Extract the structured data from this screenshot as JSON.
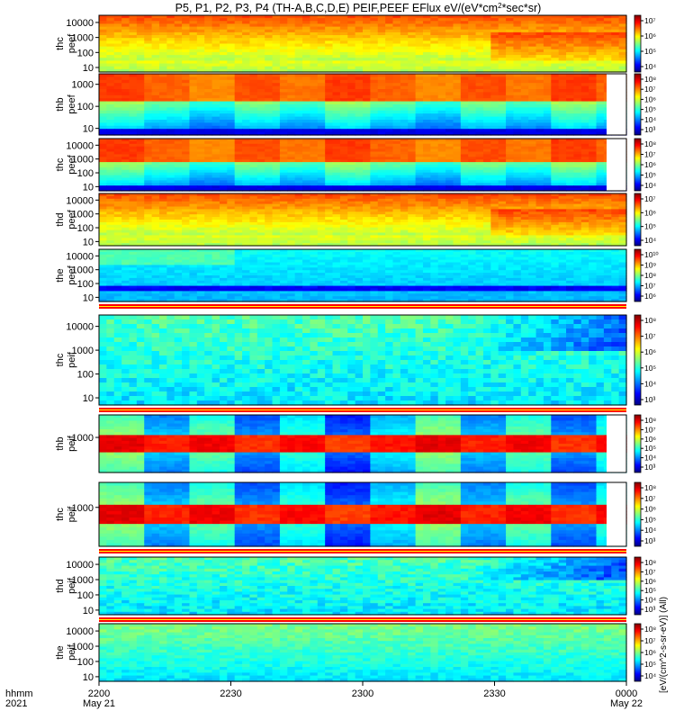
{
  "chart_data": {
    "type": "heatmap",
    "title": "P5, P1, P2, P3, P4 (TH-A,B,C,D,E) PEIF,PEEF EFlux eV/(eV*cm^2*sec*sr)",
    "title_parts": {
      "prefix": "P5, P1, P2, P3, P4 (TH-A,B,C,D,E) PEIF,PEEF EFlux eV/(eV*cm",
      "sq": "2",
      "suffix": "*sec*sr)"
    },
    "xlabel_row1": "hhmm",
    "xlabel_row2": "2021",
    "xticks": [
      {
        "label": "2200",
        "sub": "May 21",
        "t": 0
      },
      {
        "label": "2230",
        "sub": "",
        "t": 30
      },
      {
        "label": "2300",
        "sub": "",
        "t": 60
      },
      {
        "label": "2330",
        "sub": "",
        "t": 90
      },
      {
        "label": "0000",
        "sub": "May 22",
        "t": 120
      }
    ],
    "x_range_minutes": [
      0,
      120
    ],
    "colorbar_unit": "[eV/(cm^2-s-sr-eV)] (All)",
    "colormap": [
      "#000080",
      "#0000ff",
      "#0080ff",
      "#00ffff",
      "#80ff80",
      "#ffff00",
      "#ff8000",
      "#ff0000",
      "#800000"
    ],
    "panels": [
      {
        "probe": "thc",
        "product": "peef",
        "yticks": [
          "10000",
          "1000",
          "100",
          "10"
        ],
        "ylim": [
          5,
          30000
        ],
        "cbar_labels": [
          "10⁷",
          "10⁶",
          "10⁵",
          "10⁴"
        ],
        "profile": "e_a",
        "flagbar": false
      },
      {
        "probe": "thb",
        "product": "peef",
        "yticks": [
          "1000",
          "100",
          "10"
        ],
        "ylim": [
          5,
          3000
        ],
        "cbar_labels": [
          "10⁸",
          "10⁷",
          "10⁶",
          "10⁵",
          "10⁴",
          "10³"
        ],
        "profile": "e_block",
        "flagbar": false
      },
      {
        "probe": "thc",
        "product": "peef",
        "yticks": [
          "10000",
          "1000",
          "100",
          "10"
        ],
        "ylim": [
          5,
          30000
        ],
        "cbar_labels": [
          "10⁸",
          "10⁷",
          "10⁶",
          "10⁵",
          "10⁴"
        ],
        "profile": "e_block",
        "flagbar": false
      },
      {
        "probe": "thd",
        "product": "peef",
        "yticks": [
          "10000",
          "1000",
          "100",
          "10"
        ],
        "ylim": [
          5,
          30000
        ],
        "cbar_labels": [
          "10⁷",
          "10⁶",
          "10⁵",
          "10⁴"
        ],
        "profile": "e_a",
        "flagbar": false
      },
      {
        "probe": "the",
        "product": "peef",
        "yticks": [
          "10000",
          "1000",
          "100",
          "10"
        ],
        "ylim": [
          5,
          30000
        ],
        "cbar_labels": [
          "10¹⁰",
          "10⁹",
          "10⁸",
          "10⁷",
          "10⁶"
        ],
        "profile": "e_e",
        "flagbar": true
      },
      {
        "probe": "thc",
        "product": "peif",
        "yticks": [
          "10000",
          "1000",
          "100",
          "10"
        ],
        "ylim": [
          5,
          30000
        ],
        "cbar_labels": [
          "10⁸",
          "10⁷",
          "10⁶",
          "10⁵",
          "10⁴",
          "10³"
        ],
        "profile": "i_a",
        "flagbar": true
      },
      {
        "probe": "thb",
        "product": "peif",
        "yticks": [
          "1000"
        ],
        "ylim": [
          5,
          30000
        ],
        "cbar_labels": [
          "10⁸",
          "10⁷",
          "10⁶",
          "10⁵",
          "10⁴",
          "10³"
        ],
        "profile": "i_block",
        "flagbar": false
      },
      {
        "probe": "thc",
        "product": "peif",
        "yticks": [
          "1000"
        ],
        "ylim": [
          5,
          30000
        ],
        "cbar_labels": [
          "10⁸",
          "10⁷",
          "10⁶",
          "10⁵",
          "10⁴",
          "10³"
        ],
        "profile": "i_block",
        "flagbar": true
      },
      {
        "probe": "thd",
        "product": "peif",
        "yticks": [
          "10000",
          "1000",
          "100",
          "10"
        ],
        "ylim": [
          5,
          30000
        ],
        "cbar_labels": [
          "10⁸",
          "10⁷",
          "10⁶",
          "10⁵",
          "10⁴",
          "10³"
        ],
        "profile": "i_a",
        "flagbar": true
      },
      {
        "probe": "the",
        "product": "peif",
        "yticks": [
          "10000",
          "1000",
          "100",
          "10"
        ],
        "ylim": [
          5,
          30000
        ],
        "cbar_labels": [
          "10⁸",
          "10⁷",
          "10⁶",
          "10⁵",
          "10⁴"
        ],
        "profile": "i_e",
        "flagbar": false
      }
    ]
  }
}
